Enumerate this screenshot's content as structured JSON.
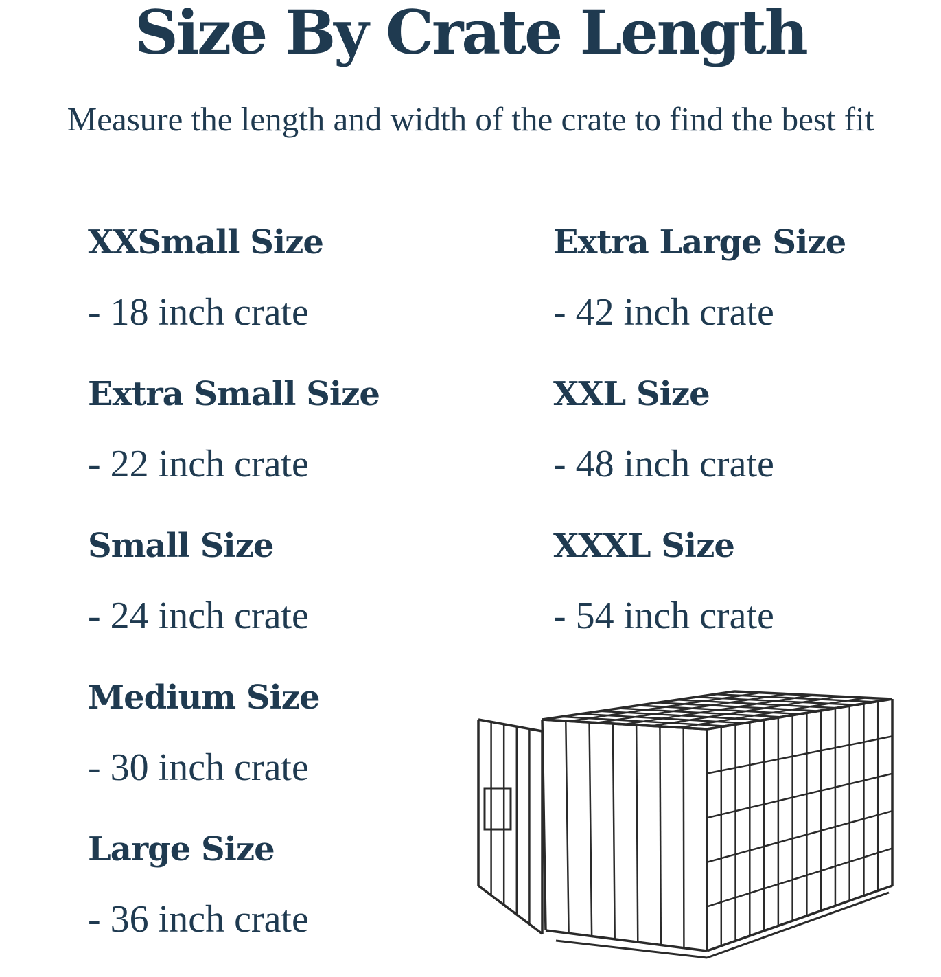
{
  "title": "Size By Crate Length",
  "subtitle": "Measure the length and width of the crate to find the best fit",
  "left_column": [
    {
      "name": "XXSmall Size",
      "length": "- 18 inch crate"
    },
    {
      "name": "Extra Small Size",
      "length": "- 22 inch crate"
    },
    {
      "name": "Small Size",
      "length": "- 24 inch crate"
    },
    {
      "name": "Medium Size",
      "length": "- 30 inch crate"
    },
    {
      "name": "Large Size",
      "length": "- 36 inch crate"
    }
  ],
  "right_column": [
    {
      "name": "Extra Large Size",
      "length": "- 42 inch crate"
    },
    {
      "name": "XXL Size",
      "length": "- 48 inch crate"
    },
    {
      "name": "XXXL Size",
      "length": "- 54 inch crate"
    }
  ],
  "colors": {
    "text": "#1f3a50",
    "crate": "#2a2a2a"
  },
  "image": "wire-dog-crate-icon"
}
